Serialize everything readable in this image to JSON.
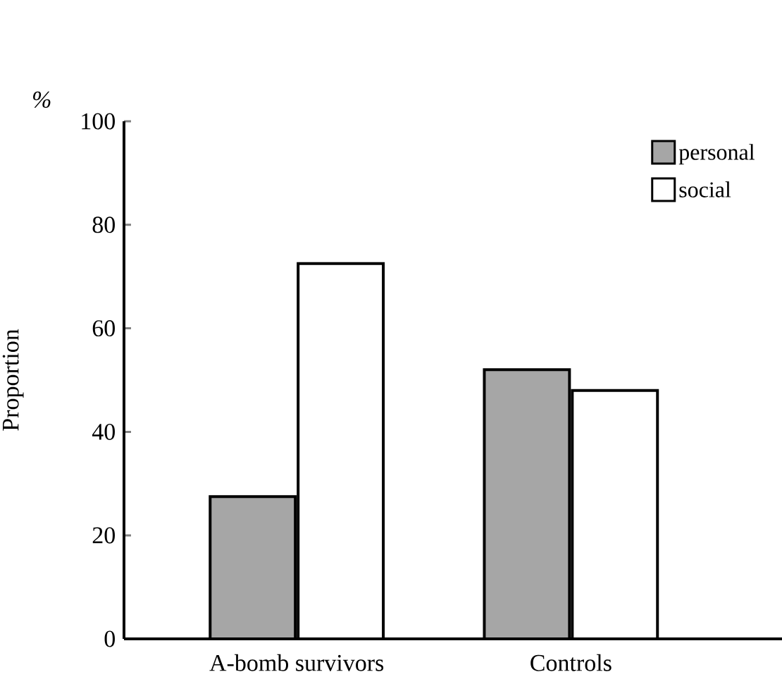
{
  "chart_data": {
    "type": "bar",
    "ylabel": "Proportion",
    "annotations": [
      "%"
    ],
    "categories": [
      "A-bomb survivors",
      "Controls"
    ],
    "series": [
      {
        "name": "personal",
        "color": "#a6a6a6",
        "values": [
          27.5,
          52
        ]
      },
      {
        "name": "social",
        "color": "#ffffff",
        "values": [
          72.5,
          48
        ]
      }
    ],
    "ylim": [
      0,
      100
    ],
    "yticks": [
      0,
      20,
      40,
      60,
      80,
      100
    ],
    "legend": "top right",
    "grid": false
  }
}
